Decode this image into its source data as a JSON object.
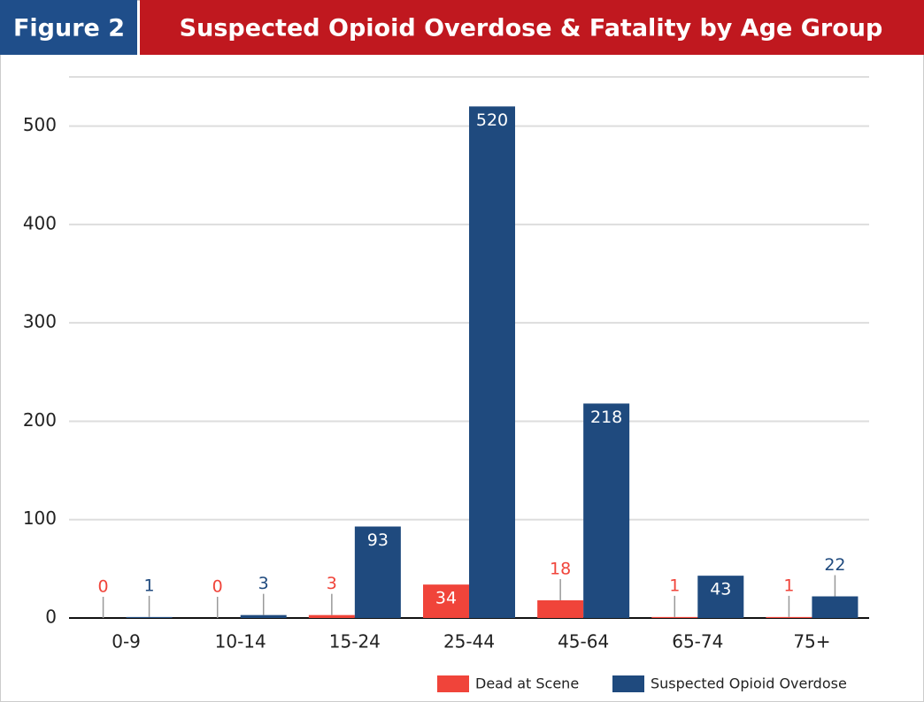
{
  "figure_label": "Figure 2",
  "chart_data": {
    "type": "bar",
    "title": "Suspected Opioid Overdose & Fatality by Age Group",
    "categories": [
      "0-9",
      "10-14",
      "15-24",
      "25-44",
      "45-64",
      "65-74",
      "75+"
    ],
    "series": [
      {
        "name": "Dead at Scene",
        "color": "#f0443a",
        "values": [
          0,
          0,
          3,
          34,
          18,
          1,
          1
        ]
      },
      {
        "name": "Suspected Opioid Overdose",
        "color": "#1f4a7e",
        "values": [
          1,
          3,
          93,
          520,
          218,
          43,
          22
        ]
      }
    ],
    "ylim": [
      0,
      550
    ],
    "yticks": [
      0,
      100,
      200,
      300,
      400,
      500
    ],
    "grid": true,
    "legend": "bottom-right"
  }
}
